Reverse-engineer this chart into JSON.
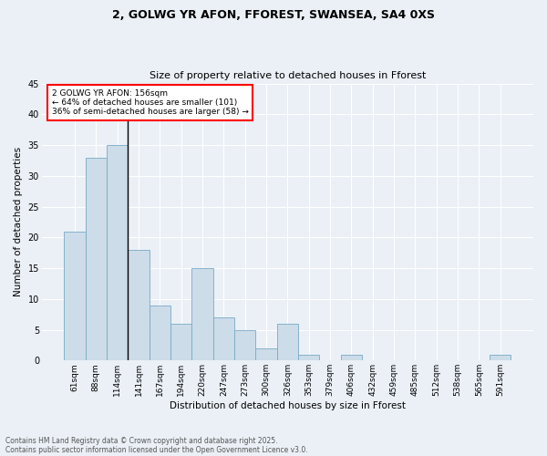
{
  "title1": "2, GOLWG YR AFON, FFOREST, SWANSEA, SA4 0XS",
  "title2": "Size of property relative to detached houses in Fforest",
  "xlabel": "Distribution of detached houses by size in Fforest",
  "ylabel": "Number of detached properties",
  "categories": [
    "61sqm",
    "88sqm",
    "114sqm",
    "141sqm",
    "167sqm",
    "194sqm",
    "220sqm",
    "247sqm",
    "273sqm",
    "300sqm",
    "326sqm",
    "353sqm",
    "379sqm",
    "406sqm",
    "432sqm",
    "459sqm",
    "485sqm",
    "512sqm",
    "538sqm",
    "565sqm",
    "591sqm"
  ],
  "values": [
    21,
    33,
    35,
    18,
    9,
    6,
    15,
    7,
    5,
    2,
    6,
    1,
    0,
    1,
    0,
    0,
    0,
    0,
    0,
    0,
    1
  ],
  "bar_color": "#ccdce8",
  "bar_edge_color": "#7aaac8",
  "ylim": [
    0,
    45
  ],
  "yticks": [
    0,
    5,
    10,
    15,
    20,
    25,
    30,
    35,
    40,
    45
  ],
  "vline_color": "black",
  "annotation_text": "2 GOLWG YR AFON: 156sqm\n← 64% of detached houses are smaller (101)\n36% of semi-detached houses are larger (58) →",
  "annotation_box_color": "white",
  "annotation_box_edge": "red",
  "footer1": "Contains HM Land Registry data © Crown copyright and database right 2025.",
  "footer2": "Contains public sector information licensed under the Open Government Licence v3.0.",
  "bg_color": "#eaf0f6",
  "grid_color": "white"
}
